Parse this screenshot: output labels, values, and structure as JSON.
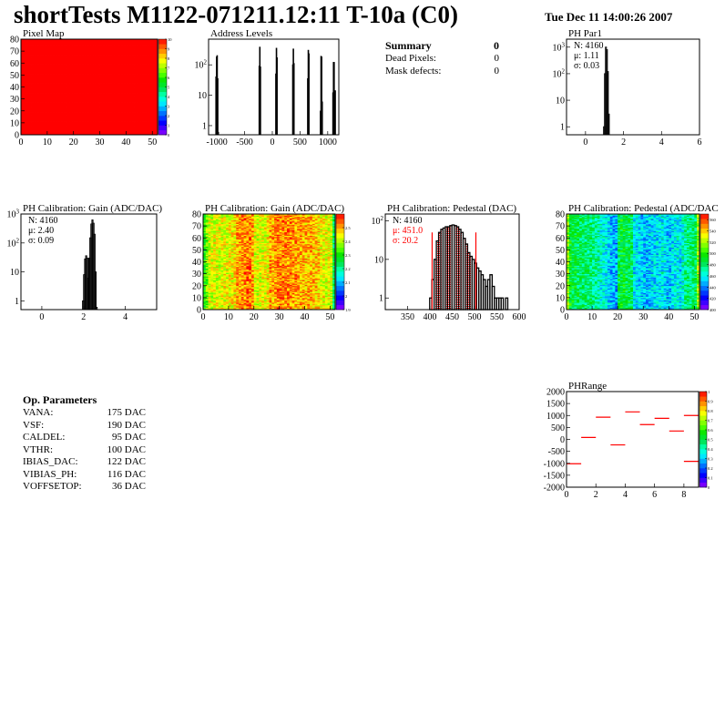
{
  "header": {
    "title": "shortTests M1122-071211.12:11 T-10a (C0)",
    "date": "Tue Dec 11 14:00:26 2007"
  },
  "summary": {
    "title": "Summary",
    "value": "0",
    "rows": [
      {
        "label": "Dead Pixels:",
        "value": "0"
      },
      {
        "label": "Mask defects:",
        "value": "0"
      }
    ]
  },
  "op_parameters": {
    "title": "Op. Parameters",
    "rows": [
      {
        "label": "VANA:",
        "value": "175 DAC"
      },
      {
        "label": "VSF:",
        "value": "190 DAC"
      },
      {
        "label": "CALDEL:",
        "value": "95 DAC"
      },
      {
        "label": "VTHR:",
        "value": "100 DAC"
      },
      {
        "label": "IBIAS_DAC:",
        "value": "122 DAC"
      },
      {
        "label": "VIBIAS_PH:",
        "value": "116 DAC"
      },
      {
        "label": "VOFFSETOP:",
        "value": "36 DAC"
      }
    ]
  },
  "colors": {
    "hist_line": "#000000",
    "fit_red": "#ff0000",
    "palette": "rainbow violet-to-red"
  },
  "chart_data": [
    {
      "id": "pixel-map",
      "type": "heatmap",
      "title": "Pixel Map",
      "xlim": [
        0,
        52
      ],
      "ylim": [
        0,
        80
      ],
      "zlim": [
        0,
        10
      ],
      "xticks": [
        0,
        10,
        20,
        30,
        40,
        50
      ],
      "yticks": [
        0,
        10,
        20,
        30,
        40,
        50,
        60,
        70,
        80
      ],
      "zticks": [
        0,
        1,
        2,
        3,
        4,
        5,
        6,
        7,
        8,
        9,
        10
      ],
      "uniform_value": 10
    },
    {
      "id": "address-levels",
      "type": "bar",
      "title": "Address Levels",
      "xlim": [
        -1150,
        1200
      ],
      "ylim": [
        0.5,
        700
      ],
      "ylog": true,
      "xticks": [
        -1000,
        -500,
        0,
        500,
        1000
      ],
      "yticks": [
        {
          "v": 1,
          "l": "1"
        },
        {
          "v": 10,
          "l": "10"
        },
        {
          "v": 100,
          "l": "10^2"
        }
      ],
      "bins": [
        [
          -1015,
          40
        ],
        [
          -1005,
          180
        ],
        [
          -995,
          200
        ],
        [
          -985,
          35
        ],
        [
          -975,
          0.6
        ],
        [
          -235,
          90
        ],
        [
          -225,
          380
        ],
        [
          -215,
          85
        ],
        [
          65,
          50
        ],
        [
          75,
          350
        ],
        [
          85,
          170
        ],
        [
          370,
          100
        ],
        [
          380,
          330
        ],
        [
          390,
          110
        ],
        [
          640,
          35
        ],
        [
          650,
          300
        ],
        [
          660,
          230
        ],
        [
          870,
          3
        ],
        [
          880,
          190
        ],
        [
          890,
          180
        ],
        [
          900,
          6
        ],
        [
          1095,
          12
        ],
        [
          1105,
          120
        ],
        [
          1115,
          120
        ],
        [
          1125,
          8
        ],
        [
          1135,
          14
        ]
      ],
      "bin_width": 10
    },
    {
      "id": "ph-par1",
      "type": "bar",
      "title": "PH Par1",
      "xlim": [
        -1,
        6
      ],
      "ylim": [
        0.5,
        2000
      ],
      "ylog": true,
      "xticks": [
        0,
        2,
        4,
        6
      ],
      "yticks": [
        {
          "v": 1,
          "l": "1"
        },
        {
          "v": 10,
          "l": "10"
        },
        {
          "v": 100,
          "l": "10^2"
        },
        {
          "v": 1000,
          "l": "10^3"
        }
      ],
      "bins": [
        [
          0.975,
          1
        ],
        [
          1.025,
          100
        ],
        [
          1.075,
          1000
        ],
        [
          1.125,
          800
        ],
        [
          1.175,
          120
        ],
        [
          1.225,
          3
        ]
      ],
      "bin_width": 0.05,
      "stats": {
        "n": "N: 4160",
        "mean": "μ: 1.11",
        "sigma": "σ: 0.03"
      }
    },
    {
      "id": "gain-hist",
      "type": "bar",
      "title": "PH Calibration: Gain (ADC/DAC)",
      "xlim": [
        -1,
        5.5
      ],
      "ylim": [
        0.5,
        1000
      ],
      "ylog": true,
      "xticks": [
        0,
        2,
        4
      ],
      "yticks": [
        {
          "v": 1,
          "l": "1"
        },
        {
          "v": 10,
          "l": "10"
        },
        {
          "v": 100,
          "l": "10^2"
        },
        {
          "v": 1000,
          "l": "10^3"
        }
      ],
      "bins": [
        [
          1.975,
          1
        ],
        [
          2.025,
          8
        ],
        [
          2.075,
          28
        ],
        [
          2.125,
          36
        ],
        [
          2.175,
          30
        ],
        [
          2.225,
          6
        ],
        [
          2.275,
          30
        ],
        [
          2.325,
          150
        ],
        [
          2.375,
          450
        ],
        [
          2.425,
          620
        ],
        [
          2.475,
          480
        ],
        [
          2.525,
          200
        ],
        [
          2.575,
          10
        ],
        [
          2.625,
          0.6
        ]
      ],
      "bin_width": 0.05,
      "stats": {
        "n": "N: 4160",
        "mean": "μ: 2.40",
        "sigma": "σ: 0.09"
      }
    },
    {
      "id": "gain-map",
      "type": "heatmap",
      "title": "PH Calibration: Gain (ADC/DAC)",
      "xlim": [
        0,
        52
      ],
      "ylim": [
        0,
        80
      ],
      "zlim": [
        1.9,
        2.6
      ],
      "xticks": [
        0,
        10,
        20,
        30,
        40,
        50
      ],
      "yticks": [
        0,
        10,
        20,
        30,
        40,
        50,
        60,
        70,
        80
      ],
      "zticks": [
        1.9,
        2,
        2.1,
        2.2,
        2.3,
        2.4,
        2.5
      ],
      "column_means": [
        2.3,
        2.36,
        2.42,
        2.42,
        2.43,
        2.43,
        2.42,
        2.43,
        2.44,
        2.43,
        2.45,
        2.45,
        2.46,
        2.5,
        2.5,
        2.51,
        2.52,
        2.53,
        2.53,
        2.5,
        2.42,
        2.42,
        2.43,
        2.43,
        2.44,
        2.45,
        2.5,
        2.5,
        2.51,
        2.52,
        2.52,
        2.53,
        2.52,
        2.52,
        2.52,
        2.51,
        2.51,
        2.5,
        2.5,
        2.5,
        2.49,
        2.49,
        2.49,
        2.48,
        2.48,
        2.47,
        2.44,
        2.44,
        2.43,
        2.43,
        2.42,
        2.25
      ]
    },
    {
      "id": "pedestal-hist",
      "type": "bar",
      "title": "PH Calibration: Pedestal (DAC)",
      "xlim": [
        300,
        600
      ],
      "ylim": [
        0.5,
        150
      ],
      "ylog": true,
      "xticks": [
        350,
        400,
        450,
        500,
        550,
        600
      ],
      "yticks": [
        {
          "v": 1,
          "l": "1"
        },
        {
          "v": 10,
          "l": "10"
        },
        {
          "v": 100,
          "l": "10^2"
        }
      ],
      "bins": [
        [
          402,
          1
        ],
        [
          407,
          3
        ],
        [
          412,
          10
        ],
        [
          417,
          30
        ],
        [
          422,
          50
        ],
        [
          427,
          60
        ],
        [
          432,
          65
        ],
        [
          437,
          70
        ],
        [
          442,
          70
        ],
        [
          447,
          75
        ],
        [
          452,
          78
        ],
        [
          457,
          75
        ],
        [
          462,
          70
        ],
        [
          467,
          60
        ],
        [
          472,
          50
        ],
        [
          477,
          35
        ],
        [
          482,
          25
        ],
        [
          487,
          15
        ],
        [
          492,
          12
        ],
        [
          497,
          10
        ],
        [
          502,
          8
        ],
        [
          507,
          6
        ],
        [
          512,
          5
        ],
        [
          517,
          4
        ],
        [
          522,
          3
        ],
        [
          527,
          2
        ],
        [
          532,
          3
        ],
        [
          537,
          4
        ],
        [
          542,
          2
        ],
        [
          547,
          1
        ],
        [
          552,
          1
        ],
        [
          557,
          1
        ],
        [
          562,
          1
        ],
        [
          572,
          1
        ]
      ],
      "bin_width": 5,
      "fit_range": [
        405,
        503
      ],
      "stats": {
        "n": "N: 4160",
        "mean": "μ: 451.0",
        "sigma": "σ: 20.2"
      }
    },
    {
      "id": "pedestal-map",
      "type": "heatmap",
      "title": "PH Calibration: Pedestal (ADC/DAC",
      "xlim": [
        0,
        52
      ],
      "ylim": [
        0,
        80
      ],
      "zlim": [
        400,
        570
      ],
      "xticks": [
        0,
        10,
        20,
        30,
        40,
        50
      ],
      "yticks": [
        0,
        10,
        20,
        30,
        40,
        50,
        60,
        70,
        80
      ],
      "zticks": [
        400,
        420,
        440,
        460,
        480,
        500,
        520,
        540,
        560
      ],
      "column_means": [
        515,
        490,
        485,
        485,
        483,
        482,
        482,
        480,
        480,
        478,
        476,
        474,
        470,
        462,
        460,
        458,
        455,
        450,
        448,
        445,
        485,
        488,
        488,
        485,
        485,
        483,
        458,
        458,
        455,
        452,
        450,
        450,
        452,
        455,
        455,
        456,
        458,
        460,
        455,
        452,
        450,
        455,
        458,
        460,
        455,
        465,
        475,
        478,
        478,
        480,
        482,
        520
      ]
    },
    {
      "id": "ph-range",
      "type": "bar",
      "title": "PHRange",
      "xlim": [
        0,
        9
      ],
      "ylim": [
        -2000,
        2000
      ],
      "zlim": [
        0,
        1
      ],
      "xticks": [
        0,
        2,
        4,
        6,
        8
      ],
      "yticks": [
        -2000,
        -1500,
        -1000,
        -500,
        0,
        500,
        1000,
        1500,
        2000
      ],
      "zticks": [
        0,
        0.1,
        0.2,
        0.3,
        0.4,
        0.5,
        0.6,
        0.7,
        0.8,
        0.9,
        1
      ],
      "bins": [
        [
          0,
          -1020
        ],
        [
          1,
          80
        ],
        [
          2,
          930
        ],
        [
          3,
          -230
        ],
        [
          4,
          1150
        ],
        [
          5,
          620
        ],
        [
          6,
          880
        ],
        [
          7,
          350
        ],
        [
          8,
          1000
        ],
        [
          8,
          -920
        ]
      ]
    }
  ]
}
